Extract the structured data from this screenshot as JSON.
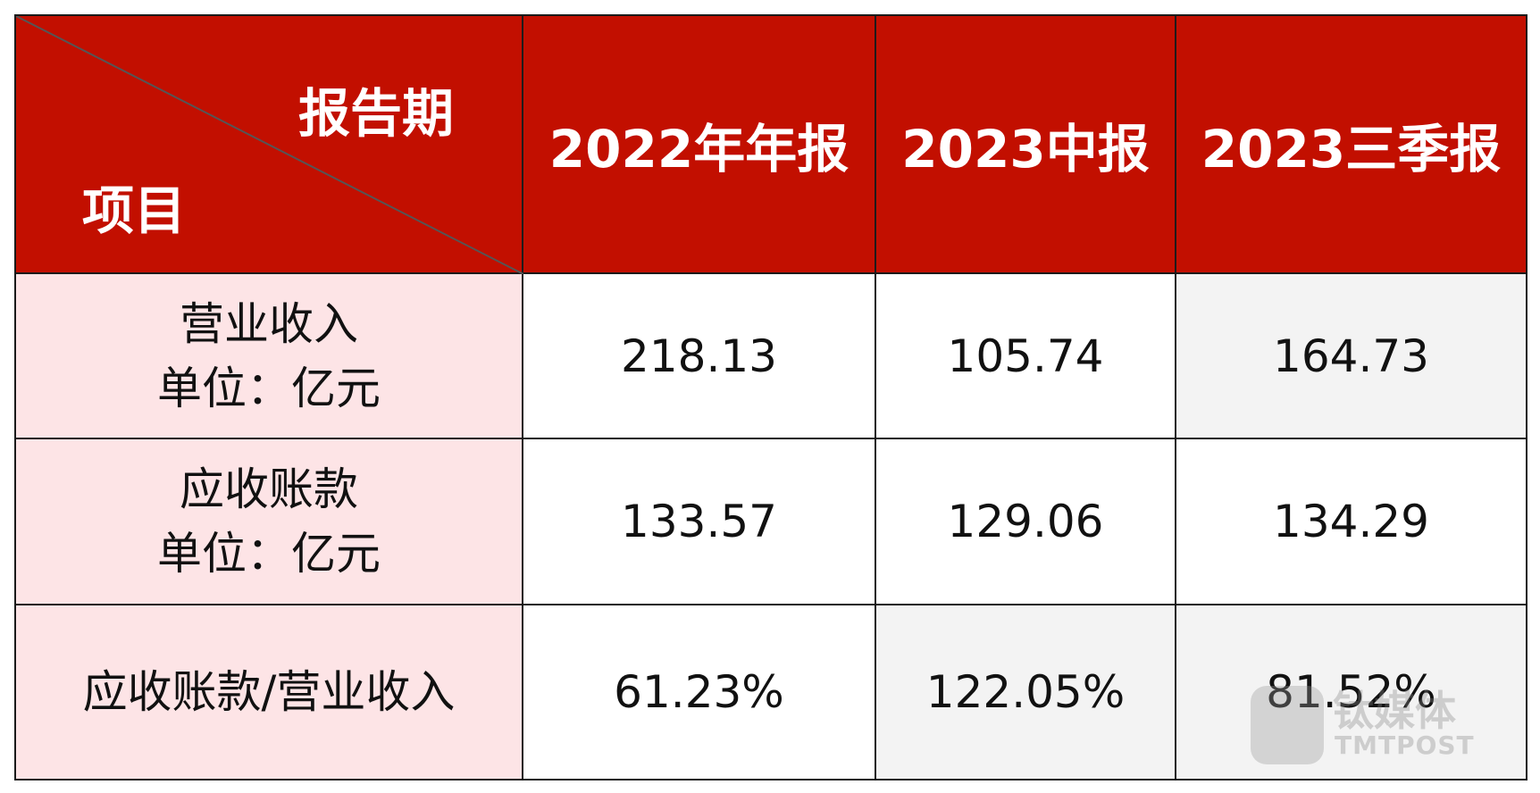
{
  "header": {
    "corner_top": "报告期",
    "corner_bottom": "项目",
    "columns": [
      "2022年年报",
      "2023中报",
      "2023三季报"
    ]
  },
  "table": {
    "rows": [
      {
        "label": [
          "营业收入",
          "单位：亿元"
        ],
        "cells": [
          "218.13",
          "105.74",
          "164.73"
        ]
      },
      {
        "label": [
          "应收账款",
          "单位：亿元"
        ],
        "cells": [
          "133.57",
          "129.06",
          "134.29"
        ]
      },
      {
        "label": [
          "应收账款/营业收入"
        ],
        "cells": [
          "61.23%",
          "122.05%",
          "81.52%"
        ]
      }
    ]
  },
  "watermark": {
    "name": "钛媒体",
    "brand": "TMTPOST"
  }
}
